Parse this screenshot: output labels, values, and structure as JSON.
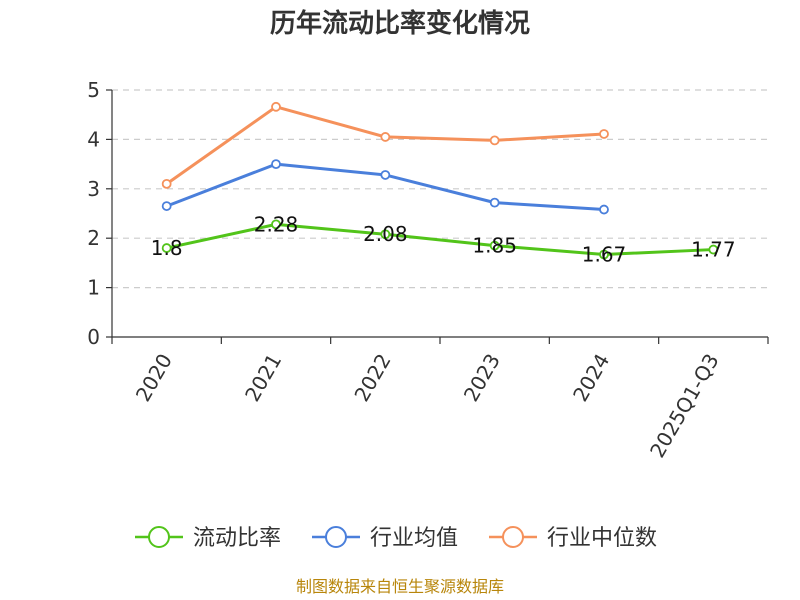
{
  "chart_data": {
    "type": "line",
    "title": "历年流动比率变化情况",
    "categories": [
      "2020",
      "2021",
      "2022",
      "2023",
      "2024",
      "2025Q1-Q3"
    ],
    "series": [
      {
        "name": "流动比率",
        "color": "#52c41a",
        "values": [
          1.8,
          2.28,
          2.08,
          1.85,
          1.67,
          1.77
        ],
        "labels": [
          "1.8",
          "2.28",
          "2.08",
          "1.85",
          "1.67",
          "1.77"
        ]
      },
      {
        "name": "行业均值",
        "color": "#4a7fdb",
        "values": [
          2.65,
          3.5,
          3.28,
          2.72,
          2.58,
          null
        ]
      },
      {
        "name": "行业中位数",
        "color": "#f5915b",
        "values": [
          3.1,
          4.66,
          4.05,
          3.98,
          4.11,
          null
        ]
      }
    ],
    "yticks": [
      "0",
      "1",
      "2",
      "3",
      "4",
      "5"
    ],
    "ylim": [
      0,
      5
    ],
    "grid": true,
    "legend_position": "bottom",
    "source": "制图数据来自恒生聚源数据库"
  }
}
